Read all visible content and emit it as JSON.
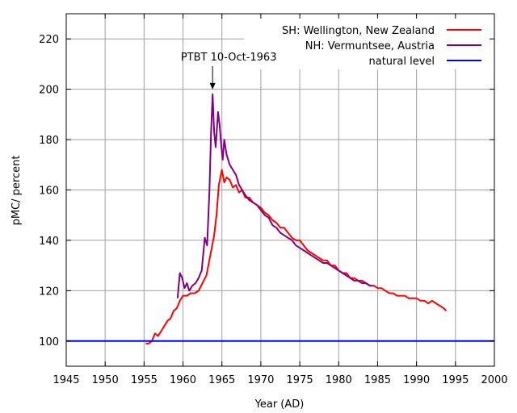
{
  "chart_data": {
    "type": "line",
    "xlabel": "Year (AD)",
    "ylabel": "pMC/ percent",
    "xlim": [
      1945,
      2000
    ],
    "ylim": [
      90,
      230
    ],
    "x_ticks": [
      1945,
      1950,
      1955,
      1960,
      1965,
      1970,
      1975,
      1980,
      1985,
      1990,
      1995,
      2000
    ],
    "y_ticks": [
      100,
      120,
      140,
      160,
      180,
      200,
      220
    ],
    "grid": true,
    "legend_position": "top-right",
    "annotation": {
      "text": "PTBT 10-Oct-1963",
      "x": 1963.8,
      "y": 198
    },
    "series": [
      {
        "name": "SH: Wellington, New Zealand",
        "color": "#ff0000",
        "points": [
          [
            1955.2,
            99
          ],
          [
            1955.6,
            99
          ],
          [
            1956.0,
            100
          ],
          [
            1956.4,
            103
          ],
          [
            1956.8,
            102
          ],
          [
            1957.2,
            104
          ],
          [
            1957.6,
            106
          ],
          [
            1958.0,
            108
          ],
          [
            1958.4,
            109
          ],
          [
            1958.8,
            112
          ],
          [
            1959.2,
            113
          ],
          [
            1959.6,
            116
          ],
          [
            1960.0,
            118
          ],
          [
            1960.5,
            118
          ],
          [
            1961.0,
            119
          ],
          [
            1961.5,
            119
          ],
          [
            1962.0,
            120
          ],
          [
            1962.5,
            123
          ],
          [
            1963.0,
            126
          ],
          [
            1963.5,
            134
          ],
          [
            1964.0,
            142
          ],
          [
            1964.3,
            150
          ],
          [
            1964.6,
            162
          ],
          [
            1965.0,
            168
          ],
          [
            1965.3,
            163
          ],
          [
            1965.6,
            165
          ],
          [
            1966.0,
            164
          ],
          [
            1966.4,
            161
          ],
          [
            1966.8,
            162
          ],
          [
            1967.2,
            159
          ],
          [
            1967.6,
            160
          ],
          [
            1968.0,
            157
          ],
          [
            1968.5,
            157
          ],
          [
            1969.0,
            155
          ],
          [
            1969.5,
            154
          ],
          [
            1970.0,
            153
          ],
          [
            1970.5,
            151
          ],
          [
            1971.0,
            150
          ],
          [
            1971.5,
            148
          ],
          [
            1972.0,
            147
          ],
          [
            1972.5,
            145
          ],
          [
            1973.0,
            145
          ],
          [
            1973.5,
            143
          ],
          [
            1974.0,
            141
          ],
          [
            1974.5,
            140
          ],
          [
            1975.0,
            140
          ],
          [
            1975.5,
            138
          ],
          [
            1976.0,
            136
          ],
          [
            1976.5,
            135
          ],
          [
            1977.0,
            134
          ],
          [
            1977.5,
            133
          ],
          [
            1978.0,
            132
          ],
          [
            1978.5,
            132
          ],
          [
            1979.0,
            130
          ],
          [
            1979.5,
            130
          ],
          [
            1980.0,
            128
          ],
          [
            1980.5,
            127
          ],
          [
            1981.0,
            127
          ],
          [
            1981.5,
            125
          ],
          [
            1982.0,
            125
          ],
          [
            1982.5,
            124
          ],
          [
            1983.0,
            124
          ],
          [
            1983.5,
            123
          ],
          [
            1984.0,
            122
          ],
          [
            1984.5,
            122
          ],
          [
            1985.0,
            121
          ],
          [
            1985.5,
            121
          ],
          [
            1986.0,
            120
          ],
          [
            1986.5,
            119
          ],
          [
            1987.0,
            119
          ],
          [
            1987.5,
            118
          ],
          [
            1988.0,
            118
          ],
          [
            1988.5,
            118
          ],
          [
            1989.0,
            117
          ],
          [
            1989.5,
            117
          ],
          [
            1990.0,
            117
          ],
          [
            1990.5,
            116
          ],
          [
            1991.0,
            116
          ],
          [
            1991.5,
            115
          ],
          [
            1992.0,
            116
          ],
          [
            1992.5,
            115
          ],
          [
            1993.0,
            114
          ],
          [
            1993.5,
            113
          ],
          [
            1993.8,
            112
          ]
        ]
      },
      {
        "name": "NH: Vermuntsee, Austria",
        "color": "#800080",
        "points": [
          [
            1959.3,
            117
          ],
          [
            1959.6,
            127
          ],
          [
            1959.9,
            125
          ],
          [
            1960.2,
            121
          ],
          [
            1960.5,
            123
          ],
          [
            1960.8,
            120
          ],
          [
            1961.2,
            122
          ],
          [
            1961.6,
            123
          ],
          [
            1962.0,
            125
          ],
          [
            1962.4,
            128
          ],
          [
            1962.8,
            141
          ],
          [
            1963.1,
            138
          ],
          [
            1963.4,
            160
          ],
          [
            1963.6,
            182
          ],
          [
            1963.8,
            198
          ],
          [
            1964.0,
            183
          ],
          [
            1964.2,
            177
          ],
          [
            1964.4,
            186
          ],
          [
            1964.5,
            191
          ],
          [
            1964.7,
            186
          ],
          [
            1964.9,
            178
          ],
          [
            1965.1,
            172
          ],
          [
            1965.3,
            180
          ],
          [
            1965.6,
            174
          ],
          [
            1966.0,
            170
          ],
          [
            1966.4,
            168
          ],
          [
            1966.8,
            166
          ],
          [
            1967.2,
            162
          ],
          [
            1967.6,
            160
          ],
          [
            1968.0,
            158
          ],
          [
            1968.5,
            156
          ],
          [
            1969.0,
            155
          ],
          [
            1969.5,
            154
          ],
          [
            1970.0,
            152
          ],
          [
            1970.5,
            150
          ],
          [
            1971.0,
            149
          ],
          [
            1971.5,
            146
          ],
          [
            1972.0,
            145
          ],
          [
            1972.5,
            143
          ],
          [
            1973.0,
            142
          ],
          [
            1973.5,
            141
          ],
          [
            1974.0,
            140
          ],
          [
            1974.5,
            138
          ],
          [
            1975.0,
            137
          ],
          [
            1975.5,
            136
          ],
          [
            1976.0,
            135
          ],
          [
            1976.5,
            134
          ],
          [
            1977.0,
            133
          ],
          [
            1977.5,
            132
          ],
          [
            1978.0,
            131
          ],
          [
            1978.5,
            131
          ],
          [
            1979.0,
            130
          ],
          [
            1979.5,
            129
          ],
          [
            1980.0,
            128
          ],
          [
            1980.5,
            127
          ],
          [
            1981.0,
            126
          ],
          [
            1981.5,
            125
          ],
          [
            1982.0,
            124
          ],
          [
            1982.5,
            124
          ],
          [
            1983.0,
            123
          ],
          [
            1983.5,
            123
          ],
          [
            1984.0,
            122
          ],
          [
            1984.3,
            122
          ]
        ]
      },
      {
        "name": "natural level",
        "color": "#0000ff",
        "points": [
          [
            1945,
            100
          ],
          [
            2000,
            100
          ]
        ]
      }
    ]
  }
}
